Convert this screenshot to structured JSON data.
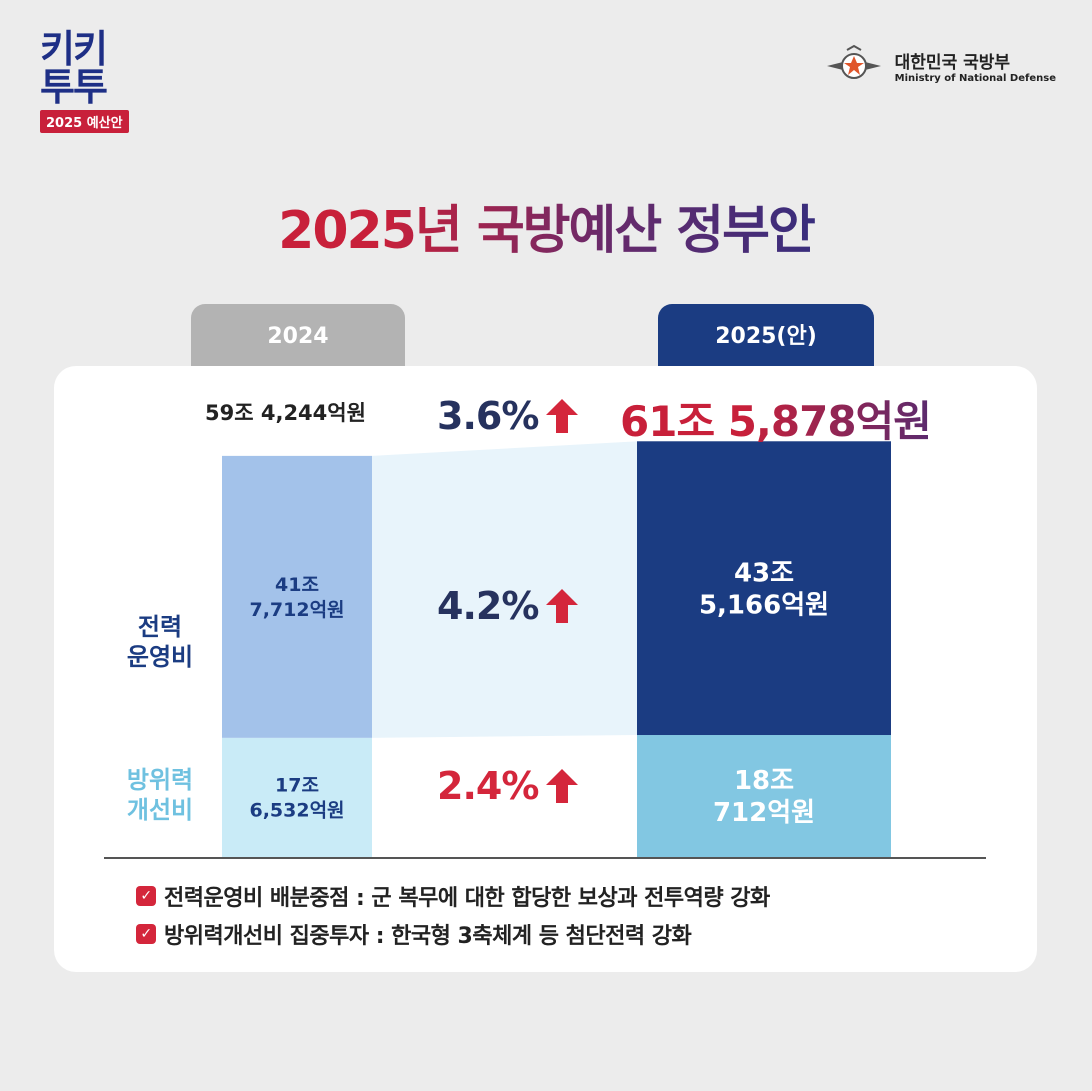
{
  "header": {
    "logo_line1": "키키",
    "logo_line2": "투투",
    "logo_badge": "2025 예산안",
    "ministry_ko": "대한민국 국방부",
    "ministry_en": "Ministry of National Defense"
  },
  "title": "2025년 국방예산 정부안",
  "tabs": {
    "y2024": "2024",
    "y2025": "2025(안)"
  },
  "totals": {
    "y2024": "59조 4,244억원",
    "change": "3.6%",
    "y2025": "61조 5,878억원"
  },
  "categories": {
    "ops": "전력\n운영비",
    "imp": "방위력\n개선비"
  },
  "changes": {
    "ops": "4.2%",
    "imp": "2.4%"
  },
  "colors": {
    "ops_2024": "#a3c2ea",
    "imp_2024": "#c9ebf7",
    "ops_2025": "#1b3c82",
    "imp_2025": "#82c7e2",
    "up_arrow": "#d4263b",
    "band": "#e8f4fb"
  },
  "chart_data": {
    "type": "bar",
    "stacked": true,
    "categories": [
      "2024",
      "2025(안)"
    ],
    "series": [
      {
        "name": "방위력개선비",
        "values": [
          17.6532,
          18.0712
        ],
        "labels": [
          "17조\n6,532억원",
          "18조\n712억원"
        ]
      },
      {
        "name": "전력운영비",
        "values": [
          41.7712,
          43.5166
        ],
        "labels": [
          "41조\n7,712억원",
          "43조\n5,166억원"
        ]
      }
    ]
  },
  "notes": [
    "전력운영비 배분중점 : 군 복무에 대한 합당한 보상과 전투역량 강화",
    "방위력개선비 집중투자 : 한국형 3축체계 등 첨단전력 강화"
  ]
}
